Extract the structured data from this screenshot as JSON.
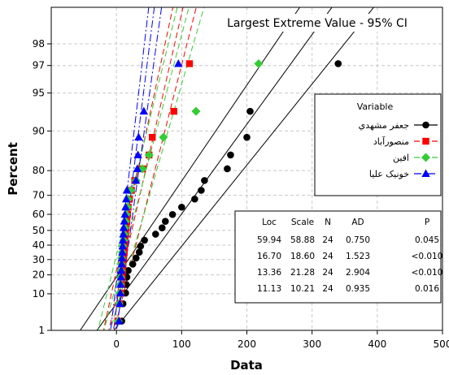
{
  "chart_data": {
    "type": "scatter",
    "title": "Largest Extreme Value - 95% CI",
    "xlabel": "Data",
    "ylabel": "Percent",
    "xlim": [
      -100,
      500
    ],
    "x_ticks": [
      0,
      100,
      200,
      300,
      400,
      500
    ],
    "y_ticks": [
      1,
      10,
      20,
      30,
      40,
      50,
      60,
      70,
      80,
      90,
      95,
      97,
      98
    ],
    "y_scale": "largest-extreme-value probability",
    "grid": true,
    "legend": {
      "title": "Variable",
      "position": "right"
    },
    "series": [
      {
        "name": "جعفر مشهدي",
        "color": "#000000",
        "marker": "circle",
        "line_style": "solid",
        "loc": 59.94,
        "scale": 58.88,
        "points": [
          [
            8,
            2.1
          ],
          [
            10,
            6.2
          ],
          [
            14,
            10.3
          ],
          [
            15,
            14.5
          ],
          [
            16,
            18.6
          ],
          [
            18,
            22.7
          ],
          [
            25,
            26.9
          ],
          [
            30,
            31.0
          ],
          [
            35,
            35.1
          ],
          [
            37,
            39.3
          ],
          [
            43,
            43.4
          ],
          [
            60,
            47.5
          ],
          [
            70,
            51.7
          ],
          [
            75,
            55.8
          ],
          [
            86,
            59.9
          ],
          [
            100,
            64.0
          ],
          [
            120,
            68.2
          ],
          [
            130,
            72.3
          ],
          [
            135,
            76.4
          ],
          [
            170,
            80.6
          ],
          [
            175,
            84.7
          ],
          [
            200,
            88.8
          ],
          [
            205,
            93.0
          ],
          [
            340,
            97.1
          ]
        ]
      },
      {
        "name": "منصورآباد",
        "color": "#ff0000",
        "marker": "square",
        "line_style": "dashed",
        "loc": 16.7,
        "scale": 18.6,
        "points": [
          [
            2,
            2.1
          ],
          [
            5,
            6.2
          ],
          [
            7,
            10.3
          ],
          [
            8,
            14.5
          ],
          [
            9,
            18.6
          ],
          [
            9.5,
            22.7
          ],
          [
            10,
            26.9
          ],
          [
            11,
            31.0
          ],
          [
            12,
            35.1
          ],
          [
            12.5,
            39.3
          ],
          [
            13,
            43.4
          ],
          [
            14,
            47.5
          ],
          [
            15,
            51.7
          ],
          [
            16,
            55.8
          ],
          [
            17,
            59.9
          ],
          [
            18,
            64.0
          ],
          [
            20,
            68.2
          ],
          [
            23,
            72.3
          ],
          [
            28,
            76.4
          ],
          [
            40,
            80.6
          ],
          [
            50,
            84.7
          ],
          [
            55,
            88.8
          ],
          [
            88,
            93.0
          ],
          [
            112,
            97.1
          ]
        ]
      },
      {
        "name": "افين",
        "color": "#33cc33",
        "marker": "diamond",
        "line_style": "dashed",
        "loc": 13.36,
        "scale": 21.28,
        "points": [
          [
            3,
            2.1
          ],
          [
            4,
            6.2
          ],
          [
            5,
            10.3
          ],
          [
            6,
            14.5
          ],
          [
            6.5,
            18.6
          ],
          [
            7,
            22.7
          ],
          [
            7.5,
            26.9
          ],
          [
            8,
            31.0
          ],
          [
            9,
            35.1
          ],
          [
            10,
            39.3
          ],
          [
            11,
            43.4
          ],
          [
            12,
            47.5
          ],
          [
            13,
            51.7
          ],
          [
            14,
            55.8
          ],
          [
            15,
            59.9
          ],
          [
            17,
            64.0
          ],
          [
            18,
            68.2
          ],
          [
            22,
            72.3
          ],
          [
            30,
            76.4
          ],
          [
            40,
            80.6
          ],
          [
            50,
            84.7
          ],
          [
            72,
            88.8
          ],
          [
            122,
            93.0
          ],
          [
            218,
            97.1
          ]
        ]
      },
      {
        "name": "خونيک عليا",
        "color": "#0000ff",
        "marker": "triangle",
        "line_style": "dash-dot",
        "loc": 11.13,
        "scale": 10.21,
        "points": [
          [
            4,
            2.1
          ],
          [
            5,
            6.2
          ],
          [
            6,
            10.3
          ],
          [
            6.5,
            14.5
          ],
          [
            7,
            18.6
          ],
          [
            7.5,
            22.7
          ],
          [
            8,
            26.9
          ],
          [
            8.5,
            31.0
          ],
          [
            9,
            35.1
          ],
          [
            9.5,
            39.3
          ],
          [
            10,
            43.4
          ],
          [
            10.5,
            47.5
          ],
          [
            11,
            51.7
          ],
          [
            12,
            55.8
          ],
          [
            13,
            59.9
          ],
          [
            14,
            64.0
          ],
          [
            15,
            68.2
          ],
          [
            16,
            72.3
          ],
          [
            30,
            76.4
          ],
          [
            32,
            80.6
          ],
          [
            33,
            84.7
          ],
          [
            34,
            88.8
          ],
          [
            42,
            93.0
          ],
          [
            95,
            97.1
          ]
        ]
      }
    ],
    "stats_table": {
      "headers": [
        "Loc",
        "Scale",
        "N",
        "AD",
        "P"
      ],
      "rows": [
        [
          "59.94",
          "58.88",
          "24",
          "0.750",
          "0.045"
        ],
        [
          "16.70",
          "18.60",
          "24",
          "1.523",
          "<0.010"
        ],
        [
          "13.36",
          "21.28",
          "24",
          "2.904",
          "<0.010"
        ],
        [
          "11.13",
          "10.21",
          "24",
          "0.935",
          "0.016"
        ]
      ]
    }
  }
}
